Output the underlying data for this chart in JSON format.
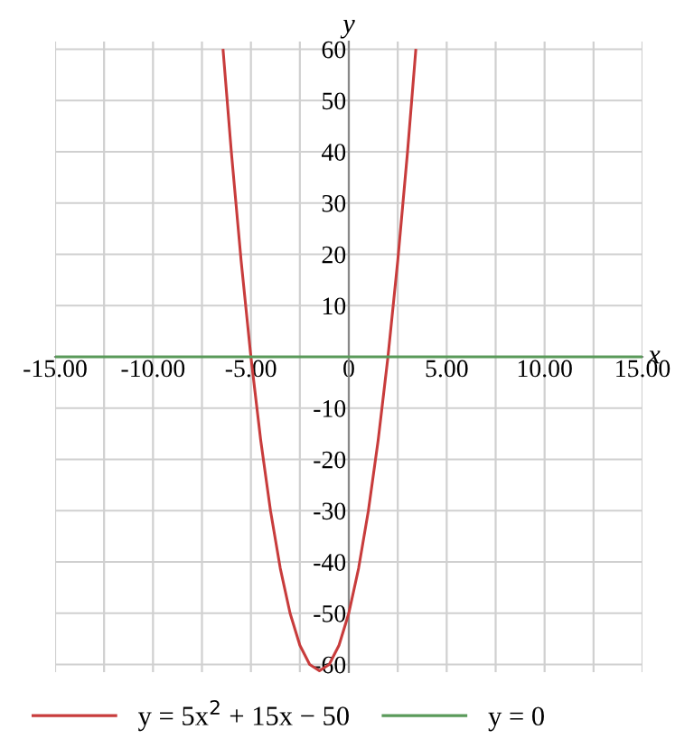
{
  "chart_data": {
    "type": "line",
    "xlabel": "x",
    "ylabel": "y",
    "xlim": [
      -15,
      15
    ],
    "ylim": [
      -61.5,
      61.5
    ],
    "xticks": [
      {
        "value": -15,
        "label": "-15.00"
      },
      {
        "value": -12.5,
        "label": null
      },
      {
        "value": -10,
        "label": "-10.00"
      },
      {
        "value": -7.5,
        "label": null
      },
      {
        "value": -5,
        "label": "-5.00"
      },
      {
        "value": -2.5,
        "label": null
      },
      0,
      {
        "value": 2.5,
        "label": null
      },
      {
        "value": 5,
        "label": "5.00"
      },
      {
        "value": 7.5,
        "label": null
      },
      {
        "value": 10,
        "label": "10.00"
      },
      {
        "value": 12.5,
        "label": null
      },
      {
        "value": 15,
        "label": "15.00"
      }
    ],
    "yticks": [
      -60,
      -50,
      -40,
      -30,
      -20,
      -10,
      {
        "value": 0,
        "label": null
      },
      10,
      20,
      30,
      40,
      50,
      60
    ],
    "grid": true,
    "legend": "bottom",
    "marker": "none",
    "line_style": "solid",
    "series": [
      {
        "name": "y = 5x$^{2}$ + 15x − 50",
        "color": "#c83c3c",
        "x": [
          -6.42,
          -6,
          -5.5,
          -5,
          -4.5,
          -4,
          -3.5,
          -3,
          -2.5,
          -2,
          -1.5,
          -1,
          -0.5,
          0,
          0.5,
          1,
          1.5,
          2,
          2.5,
          3,
          3.42
        ],
        "values": [
          59.78,
          40,
          18.75,
          0,
          -16.25,
          -30,
          -41.25,
          -50,
          -56.25,
          -60,
          -61.25,
          -60,
          -56.25,
          -50,
          -41.25,
          -30,
          -16.25,
          0,
          18.75,
          40,
          59.78
        ]
      },
      {
        "name": "y = 0",
        "color": "#5a9a5a",
        "x": [
          -15,
          15
        ],
        "values": [
          0,
          0
        ]
      }
    ]
  }
}
